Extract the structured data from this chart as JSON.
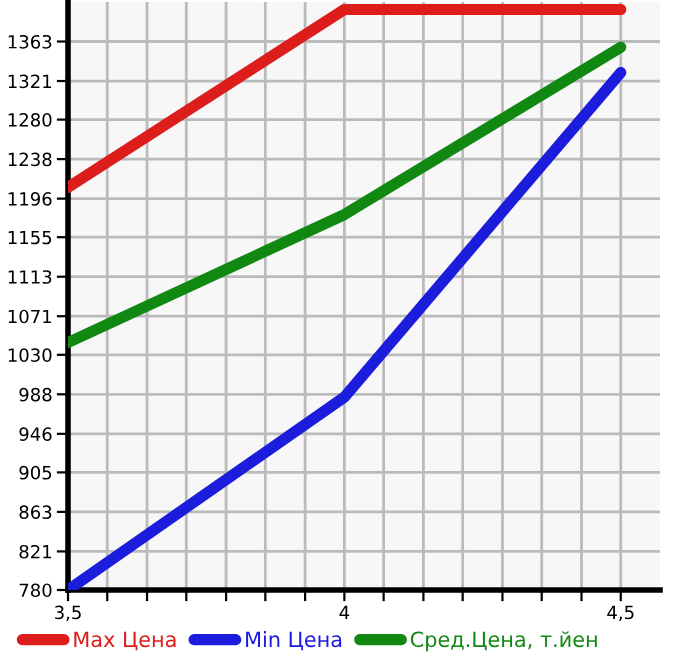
{
  "chart_data": {
    "type": "line",
    "x": [
      3.5,
      4,
      4.5
    ],
    "series": [
      {
        "name": "Max Цена",
        "color": "#dd1c1c",
        "values": [
          1208,
          1397,
          1397
        ]
      },
      {
        "name": "Min Цена",
        "color": "#1c1cdd",
        "values": [
          780,
          985,
          1330
        ]
      },
      {
        "name": "Сред.Цена, т.йен",
        "color": "#118811",
        "values": [
          1043,
          1179,
          1357
        ]
      }
    ],
    "xlim": [
      3.5,
      4.571
    ],
    "xticks": [
      {
        "value": 3.5,
        "label": "3,5"
      },
      {
        "value": 3.571,
        "label": null
      },
      {
        "value": 3.643,
        "label": null
      },
      {
        "value": 3.714,
        "label": null
      },
      {
        "value": 3.786,
        "label": null
      },
      {
        "value": 3.857,
        "label": null
      },
      {
        "value": 3.929,
        "label": null
      },
      {
        "value": 4,
        "label": "4"
      },
      {
        "value": 4.071,
        "label": null
      },
      {
        "value": 4.143,
        "label": null
      },
      {
        "value": 4.214,
        "label": null
      },
      {
        "value": 4.286,
        "label": null
      },
      {
        "value": 4.357,
        "label": null
      },
      {
        "value": 4.429,
        "label": null
      },
      {
        "value": 4.5,
        "label": "4,5"
      }
    ],
    "ylim": [
      780,
      1405
    ],
    "yticks": [
      780,
      821,
      863,
      905,
      946,
      988,
      1030,
      1071,
      1113,
      1155,
      1196,
      1238,
      1280,
      1321,
      1363
    ],
    "grid": true,
    "legend": "bottom",
    "marker": "none",
    "line_style": "solid"
  }
}
